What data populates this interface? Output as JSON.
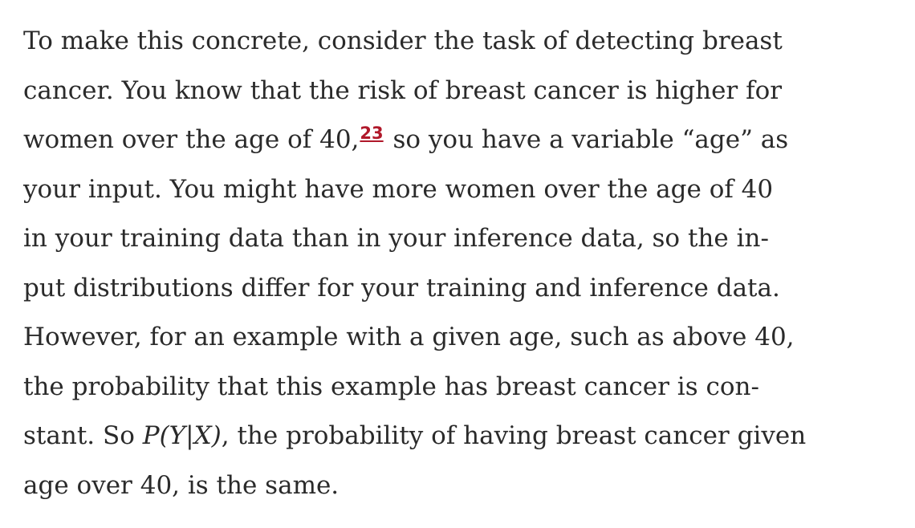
{
  "paragraph": {
    "lines": [
      "To make this concrete, consider the task of detecting breast",
      "cancer. You know that the risk of breast cancer is higher for",
      {
        "before": "women over the age of 40,",
        "footnote": "23",
        "after": " so you have a variable “age” as"
      },
      "your input. You might have more women over the age of 40",
      "in your training data than in your inference data, so the in-",
      "put distributions differ for your training and inference data.",
      "However, for an example with a given age, such as above 40,",
      "the probability that this example has breast cancer is con-",
      {
        "before": "stant. So ",
        "math": "P(Y|X)",
        "after": ", the probability of having breast cancer given"
      },
      "age over 40, is the same."
    ]
  }
}
